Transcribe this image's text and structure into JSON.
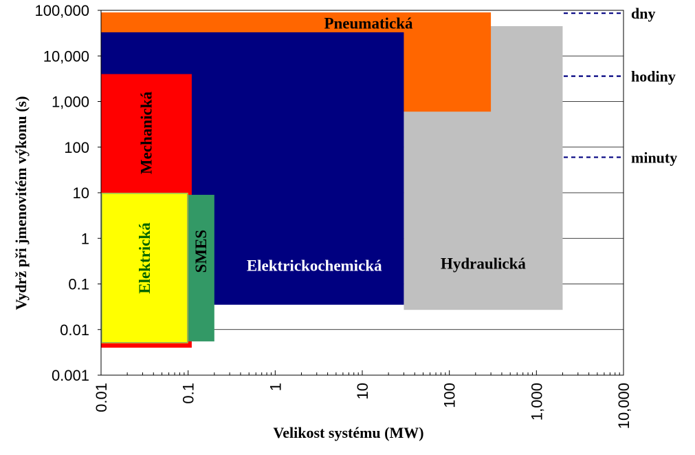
{
  "chart_data": {
    "type": "area",
    "xlabel": "Velikost systému (MW)",
    "ylabel": "Vydrž při jmenovitém výkonu (s)",
    "x_scale": "log",
    "y_scale": "log",
    "xlim": [
      0.01,
      10000
    ],
    "ylim": [
      0.001,
      100000
    ],
    "x_ticks": [
      {
        "value": 0.01,
        "label": "0.01"
      },
      {
        "value": 0.1,
        "label": "0.1"
      },
      {
        "value": 1,
        "label": "1"
      },
      {
        "value": 10,
        "label": "10"
      },
      {
        "value": 100,
        "label": "100"
      },
      {
        "value": 1000,
        "label": "1,000"
      },
      {
        "value": 10000,
        "label": "10,000"
      }
    ],
    "y_ticks": [
      {
        "value": 0.001,
        "label": "0.001"
      },
      {
        "value": 0.01,
        "label": "0.01"
      },
      {
        "value": 0.1,
        "label": "0.1"
      },
      {
        "value": 1,
        "label": "1"
      },
      {
        "value": 10,
        "label": "10"
      },
      {
        "value": 100,
        "label": "100"
      },
      {
        "value": 1000,
        "label": "1,000"
      },
      {
        "value": 10000,
        "label": "10,000"
      },
      {
        "value": 100000,
        "label": "100,000"
      }
    ],
    "gridlines": "horizontal",
    "regions": [
      {
        "name": "Hydraulická",
        "x": [
          30,
          2000
        ],
        "y": [
          0.027,
          45000
        ],
        "color": "#c0c0c0",
        "label_orientation": "horizontal"
      },
      {
        "name": "Pneumatická",
        "x": [
          0.01,
          300
        ],
        "y": [
          600,
          90000
        ],
        "color": "#ff6600",
        "label_orientation": "horizontal"
      },
      {
        "name": "Elektrickochemická",
        "x": [
          0.01,
          30
        ],
        "y": [
          0.035,
          33000
        ],
        "color": "#000080",
        "label_orientation": "horizontal"
      },
      {
        "name": "Mechanická",
        "x": [
          0.01,
          0.11
        ],
        "y": [
          0.004,
          4000
        ],
        "color": "#ff0000",
        "label_orientation": "vertical"
      },
      {
        "name": "SMES",
        "x": [
          0.1,
          0.2
        ],
        "y": [
          0.0055,
          9
        ],
        "color": "#339966",
        "label_orientation": "vertical"
      },
      {
        "name": "Elektrická",
        "x": [
          0.01,
          0.1
        ],
        "y": [
          0.005,
          10
        ],
        "color": "#ffff00",
        "label_orientation": "vertical"
      }
    ],
    "reference_lines": [
      {
        "label": "dny",
        "y": 86400
      },
      {
        "label": "hodiny",
        "y": 3600
      },
      {
        "label": "minuty",
        "y": 60
      }
    ]
  }
}
